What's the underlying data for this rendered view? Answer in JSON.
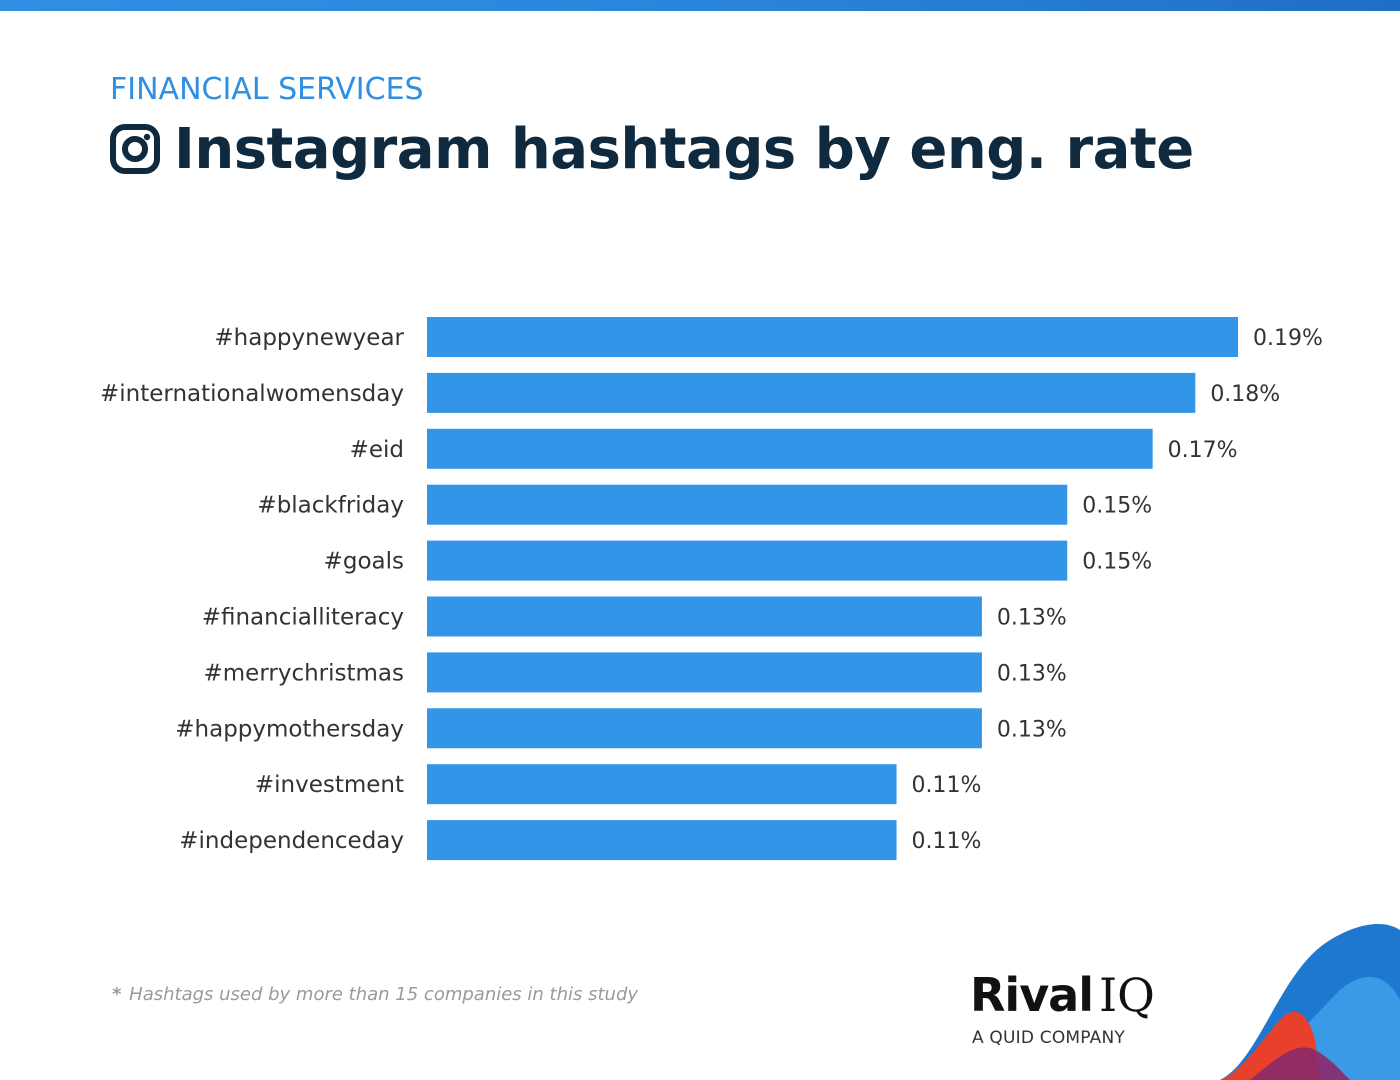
{
  "header": {
    "category": "FINANCIAL SERVICES",
    "title": "Instagram hashtags by eng. rate",
    "icon": "instagram-icon"
  },
  "colors": {
    "accent": "#2f8fe3",
    "bar": "#3395e8",
    "title": "#0f2a3f",
    "label": "#333333",
    "footnote": "#9a9a9a"
  },
  "chart_data": {
    "type": "bar",
    "orientation": "horizontal",
    "categories": [
      "#happynewyear",
      "#internationalwomensday",
      "#eid",
      "#blackfriday",
      "#goals",
      "#financialliteracy",
      "#merrychristmas",
      "#happymothersday",
      "#investment",
      "#independenceday"
    ],
    "values": [
      0.19,
      0.18,
      0.17,
      0.15,
      0.15,
      0.13,
      0.13,
      0.13,
      0.11,
      0.11
    ],
    "value_labels": [
      "0.19%",
      "0.18%",
      "0.17%",
      "0.15%",
      "0.15%",
      "0.13%",
      "0.13%",
      "0.13%",
      "0.11%",
      "0.11%"
    ],
    "title": "Instagram hashtags by eng. rate",
    "xlabel": "",
    "ylabel": "",
    "xlim": [
      0,
      0.19
    ],
    "grid": false,
    "legend": "none"
  },
  "footnote": {
    "star": "*",
    "text": "Hashtags used by more than 15 companies in this study"
  },
  "logo": {
    "word": "Rival",
    "suffix": "IQ",
    "tagline": "A QUID COMPANY"
  }
}
